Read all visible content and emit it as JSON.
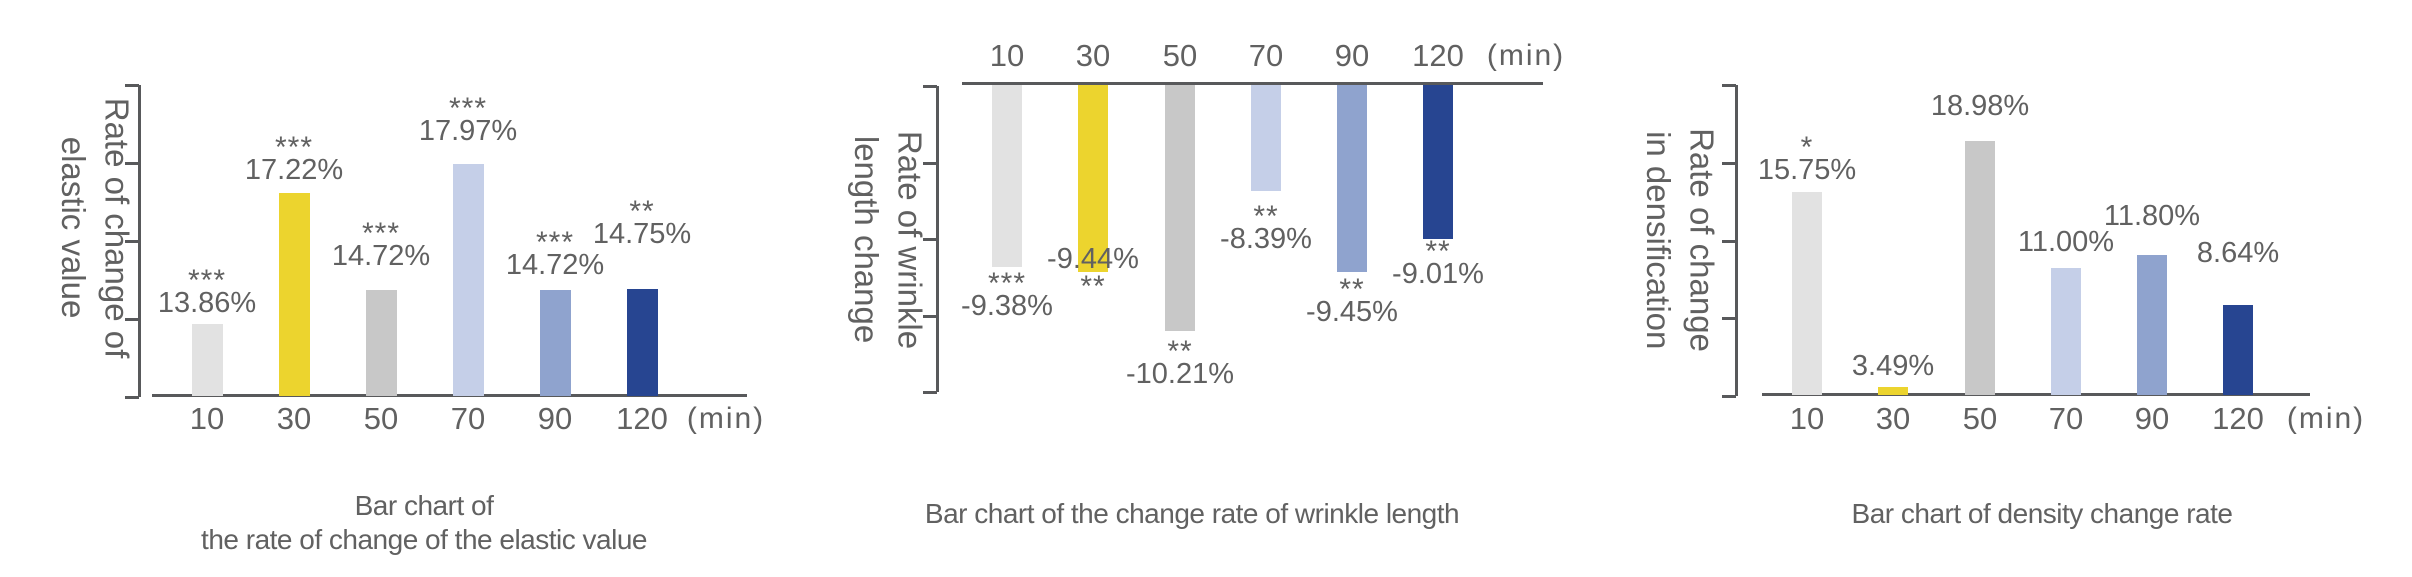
{
  "figure": {
    "background": "#ffffff",
    "text_color": "#616161",
    "axis_color": "#58595b",
    "bar_palette": [
      "#e2e2e2",
      "#ecd42e",
      "#c8c8c8",
      "#c5cfe8",
      "#8fa3ce",
      "#274591"
    ],
    "unit_label": "(min)"
  },
  "chart_data": [
    {
      "id": "elastic-value",
      "type": "bar",
      "title_lines": [
        "Bar chart of",
        "the rate of change of the elastic value"
      ],
      "ylabel_lines": [
        "Rate of change of",
        "elastic value"
      ],
      "categories": [
        "10",
        "30",
        "50",
        "70",
        "90",
        "120"
      ],
      "values": [
        13.86,
        17.22,
        14.72,
        17.97,
        14.72,
        14.75
      ],
      "value_labels": [
        "13.86%",
        "17.22%",
        "14.72%",
        "17.97%",
        "14.72%",
        "14.75%"
      ],
      "significance": [
        "***",
        "***",
        "***",
        "***",
        "***",
        "**"
      ],
      "unit": "(min)",
      "bar_direction": "up",
      "axis_side": "bottom",
      "ylim": [
        12,
        20
      ],
      "grid": false,
      "label_gaps": [
        5,
        7,
        18,
        17,
        9,
        39
      ]
    },
    {
      "id": "wrinkle-length",
      "type": "bar",
      "title_lines": [
        "Bar chart of the change rate of wrinkle length"
      ],
      "ylabel_lines": [
        "Rate of wrinkle",
        "length change"
      ],
      "categories": [
        "10",
        "30",
        "50",
        "70",
        "90",
        "120"
      ],
      "values": [
        -9.38,
        -9.44,
        -10.21,
        -8.39,
        -9.45,
        -9.01
      ],
      "value_labels": [
        "-9.38%",
        "-9.44%",
        "-10.21%",
        "-8.39%",
        "-9.45%",
        "-9.01%"
      ],
      "significance": [
        "***",
        "**",
        "**",
        "**",
        "**",
        "**"
      ],
      "unit": "(min)",
      "bar_direction": "down",
      "axis_side": "top",
      "ylim": [
        -7,
        -11
      ],
      "grid": false,
      "label_gaps": [
        10,
        -26,
        14,
        19,
        11,
        6
      ],
      "value_label_overlaps_bar": [
        false,
        true,
        false,
        false,
        false,
        false
      ]
    },
    {
      "id": "densification",
      "type": "bar",
      "title_lines": [
        "Bar chart of density change rate"
      ],
      "ylabel_lines": [
        "Rate of change",
        "in densification"
      ],
      "categories": [
        "10",
        "30",
        "50",
        "70",
        "90",
        "120"
      ],
      "values": [
        15.75,
        3.49,
        18.98,
        11.0,
        11.8,
        8.64
      ],
      "value_labels": [
        "15.75%",
        "3.49%",
        "18.98%",
        "11.00%",
        "11.80%",
        "8.64%"
      ],
      "significance": [
        "*",
        "",
        "",
        "",
        "",
        ""
      ],
      "unit": "(min)",
      "bar_direction": "up",
      "axis_side": "bottom",
      "ylim": [
        3,
        22.5
      ],
      "grid": false,
      "label_gaps": [
        6,
        5,
        19,
        10,
        23,
        36
      ]
    }
  ]
}
